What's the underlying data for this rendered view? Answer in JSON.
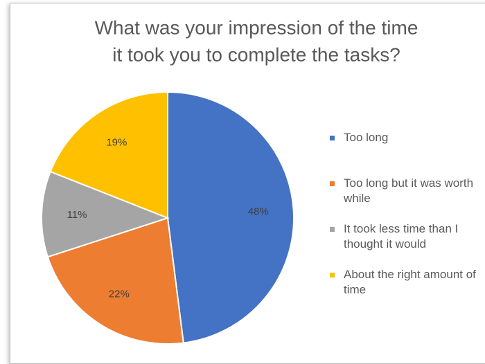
{
  "chart_data": {
    "type": "pie",
    "title": [
      "What was your impression of the time",
      "it took you to complete the tasks?"
    ],
    "categories": [
      "Too long",
      "Too long but it was worth while",
      "It took less time than I thought it would",
      "About the right amount of time"
    ],
    "values": [
      48,
      22,
      11,
      19
    ],
    "value_labels": [
      "48%",
      "22%",
      "11%",
      "19%"
    ],
    "colors": [
      "#4472c4",
      "#ed7d31",
      "#a5a5a5",
      "#ffc000"
    ],
    "legend": "right"
  }
}
